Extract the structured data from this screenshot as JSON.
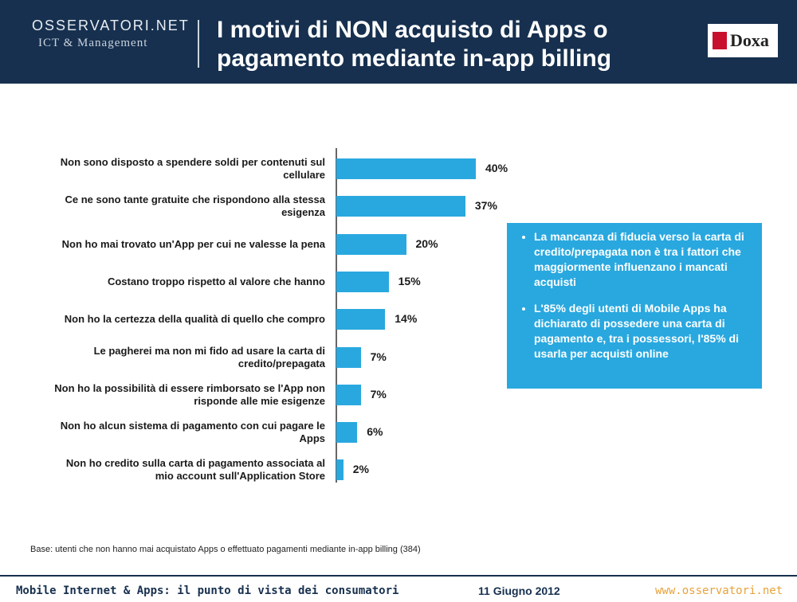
{
  "header": {
    "logo": "OSSERVATORI.NET",
    "logo_sub": "ICT & Management",
    "title": "I motivi di NON acquisto di Apps o pagamento mediante in-app billing",
    "brand": "Doxa"
  },
  "chart_data": {
    "type": "bar",
    "orientation": "horizontal",
    "color": "#29a8df",
    "categories": [
      "Non sono disposto a spendere soldi per contenuti sul cellulare",
      "Ce ne sono tante gratuite che rispondono alla stessa esigenza",
      "Non ho mai trovato un'App per cui ne valesse la pena",
      "Costano troppo rispetto al valore che hanno",
      "Non ho la certezza della qualità di quello che compro",
      "Le pagherei ma non mi fido ad usare la carta di credito/prepagata",
      "Non ho la possibilità di essere rimborsato se l'App non risponde alle mie esigenze",
      "Non ho alcun sistema di pagamento con cui pagare le Apps",
      "Non ho credito sulla carta di pagamento associata al mio account sull'Application Store"
    ],
    "values": [
      40,
      37,
      20,
      15,
      14,
      7,
      7,
      6,
      2
    ],
    "value_labels": [
      "40%",
      "37%",
      "20%",
      "15%",
      "14%",
      "7%",
      "7%",
      "6%",
      "2%"
    ]
  },
  "callout": {
    "bullets": [
      "La mancanza di fiducia verso la carta di credito/prepagata non è tra i fattori che maggiormente influenzano i mancati acquisti",
      "L'85% degli utenti di Mobile Apps ha dichiarato di possedere una carta di pagamento e, tra i possessori, l'85% di usarla per acquisti online"
    ]
  },
  "note": "Base: utenti che non hanno mai acquistato Apps o effettuato pagamenti mediante in-app billing (384)",
  "footer": {
    "left": "Mobile Internet & Apps: il punto di vista dei consumatori",
    "date": "11 Giugno 2012",
    "url": "www.osservatori.net"
  }
}
